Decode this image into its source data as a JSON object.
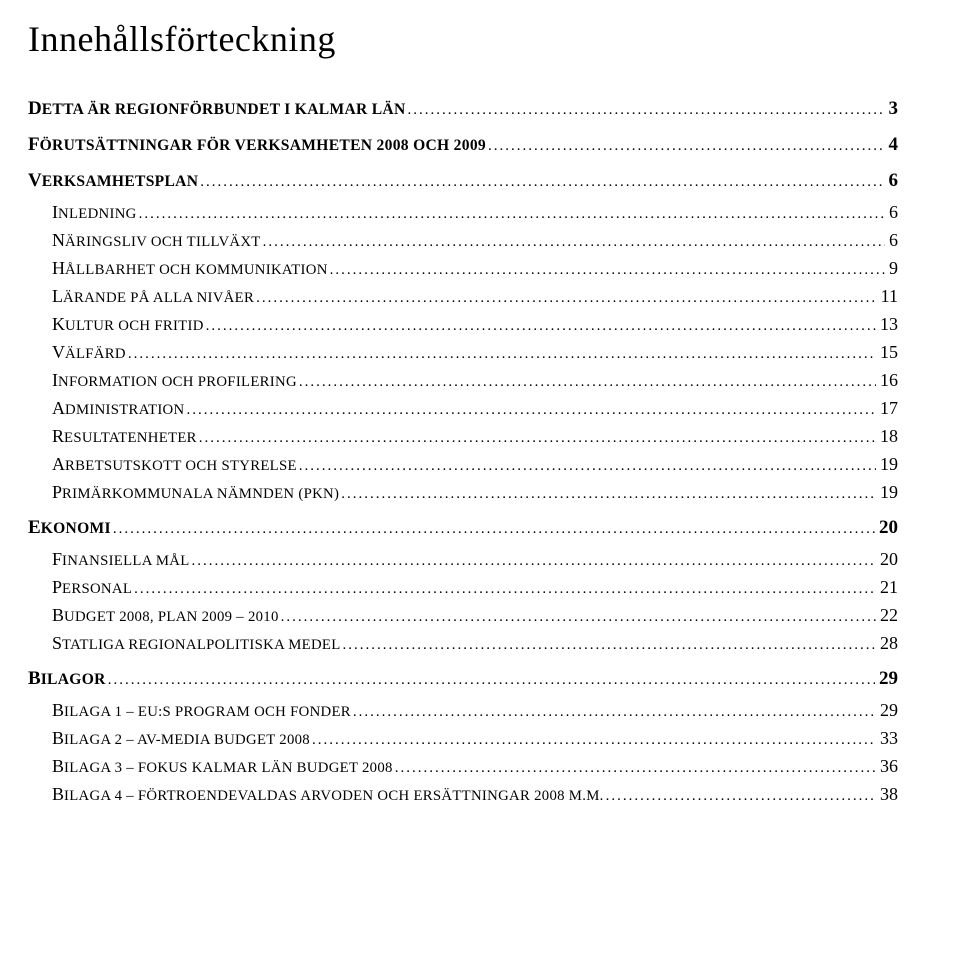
{
  "title": "Innehållsförteckning",
  "entries": [
    {
      "level": 1,
      "label_first": "D",
      "label_rest": "ETTA ÄR REGIONFÖRBUNDET I KALMAR LÄN",
      "page": "3"
    },
    {
      "level": 1,
      "label_first": "F",
      "label_rest": "ÖRUTSÄTTNINGAR FÖR VERKSAMHETEN 2008 OCH 2009",
      "page": "4"
    },
    {
      "level": 1,
      "label_first": "V",
      "label_rest": "ERKSAMHETSPLAN",
      "page": "6"
    },
    {
      "level": 2,
      "label_first": "I",
      "label_rest": "NLEDNING",
      "page": "6"
    },
    {
      "level": 2,
      "label_first": "N",
      "label_rest": "ÄRINGSLIV OCH TILLVÄXT",
      "page": "6"
    },
    {
      "level": 2,
      "label_first": "H",
      "label_rest": "ÅLLBARHET OCH KOMMUNIKATION",
      "page": "9"
    },
    {
      "level": 2,
      "label_first": "L",
      "label_rest": "ÄRANDE PÅ ALLA NIVÅER",
      "page": "11"
    },
    {
      "level": 2,
      "label_first": "K",
      "label_rest": "ULTUR OCH FRITID",
      "page": "13"
    },
    {
      "level": 2,
      "label_first": "V",
      "label_rest": "ÄLFÄRD",
      "page": "15"
    },
    {
      "level": 2,
      "label_first": "I",
      "label_rest": "NFORMATION OCH PROFILERING",
      "page": "16"
    },
    {
      "level": 2,
      "label_first": "A",
      "label_rest": "DMINISTRATION",
      "page": "17"
    },
    {
      "level": 2,
      "label_first": "R",
      "label_rest": "ESULTATENHETER",
      "page": "18"
    },
    {
      "level": 2,
      "label_first": "A",
      "label_rest": "RBETSUTSKOTT OCH STYRELSE",
      "page": "19"
    },
    {
      "level": 2,
      "label_first": "P",
      "label_rest": "RIMÄRKOMMUNALA NÄMNDEN (PKN)",
      "page": "19"
    },
    {
      "level": 1,
      "label_first": "E",
      "label_rest": "KONOMI",
      "page": "20"
    },
    {
      "level": 2,
      "label_first": "F",
      "label_rest": "INANSIELLA MÅL",
      "page": "20"
    },
    {
      "level": 2,
      "label_first": "P",
      "label_rest": "ERSONAL",
      "page": "21"
    },
    {
      "level": 2,
      "label_first": "B",
      "label_rest": "UDGET 2008, PLAN 2009 – 2010",
      "page": "22"
    },
    {
      "level": 2,
      "label_first": "S",
      "label_rest": "TATLIGA REGIONALPOLITISKA MEDEL",
      "page": "28"
    },
    {
      "level": 1,
      "label_first": "B",
      "label_rest": "ILAGOR",
      "page": "29"
    },
    {
      "level": 2,
      "label_first": "B",
      "label_rest": "ILAGA 1 – EU:S PROGRAM OCH FONDER",
      "page": "29"
    },
    {
      "level": 2,
      "label_first": "B",
      "label_rest": "ILAGA 2 – AV-MEDIA BUDGET 2008",
      "page": "33"
    },
    {
      "level": 2,
      "label_first": "B",
      "label_rest": "ILAGA 3 – FOKUS KALMAR LÄN BUDGET 2008",
      "page": "36"
    },
    {
      "level": 2,
      "label_first": "B",
      "label_rest": "ILAGA 4 – FÖRTROENDEVALDAS ARVODEN OCH ERSÄTTNINGAR 2008 M.M.",
      "page": "38"
    }
  ]
}
